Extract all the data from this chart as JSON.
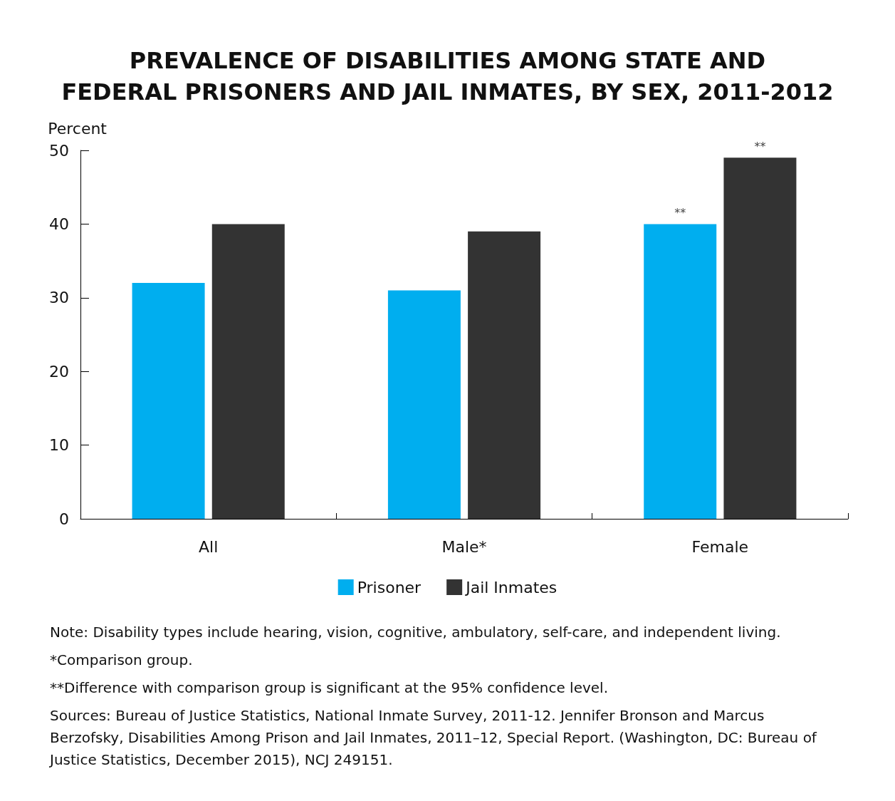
{
  "chart_data": {
    "type": "bar",
    "title": "PREVALENCE OF DISABILITIES AMONG STATE AND\nFEDERAL PRISONERS AND JAIL INMATES, BY SEX, 2011-2012",
    "ylabel": "Percent",
    "categories": [
      "All",
      "Male*",
      "Female"
    ],
    "series": [
      {
        "name": "Prisoner",
        "color": "#00aeef",
        "values": [
          32,
          31,
          40
        ],
        "value_labels": [
          null,
          null,
          "**"
        ]
      },
      {
        "name": "Jail Inmates",
        "color": "#333333",
        "values": [
          40,
          39,
          49
        ],
        "value_labels": [
          null,
          null,
          "**"
        ]
      }
    ],
    "ylim": [
      0,
      50
    ],
    "yticks": [
      0,
      10,
      20,
      30,
      40,
      50
    ],
    "grid": false,
    "legend": "bottom",
    "annotations": [
      "Note: Disability types include hearing, vision, cognitive, ambulatory, self-care, and independent living.",
      " *Comparison group.",
      "**Difference with comparison group is significant at the 95% confidence level.",
      "Sources: Bureau of Justice Statistics, National Inmate Survey, 2011-12. Jennifer Bronson and Marcus Berzofsky, Disabilities Among Prison and Jail Inmates, 2011–12, Special Report. (Washington, DC: Bureau of Justice Statistics, December 2015), NCJ 249151."
    ]
  }
}
